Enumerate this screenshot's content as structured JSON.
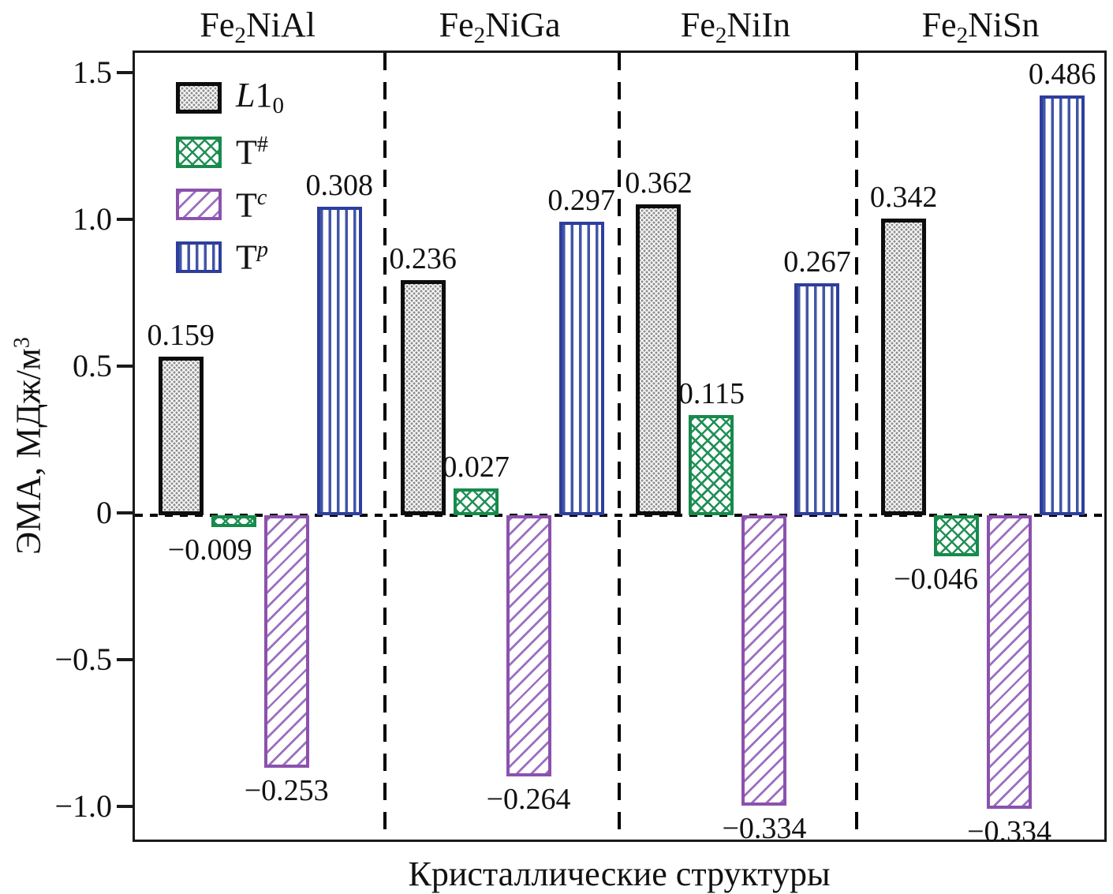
{
  "figure": {
    "xlabel": "Кристаллические структуры",
    "ylabel_main": "ЭМА, МДж/м",
    "ylabel_sup": "3"
  },
  "chart_data": {
    "type": "bar",
    "title": "",
    "xlabel": "Кристаллические структуры",
    "ylabel": "ЭМА, МДж/м³",
    "ylim": [
      -1.121,
      1.575
    ],
    "grid": false,
    "zero_line_style": "dotted",
    "legend_position": "upper-left",
    "group_separators_frac": [
      0.257,
      0.497,
      0.741
    ],
    "yticks": [
      {
        "value": 1.5,
        "label": "1.5"
      },
      {
        "value": 1.0,
        "label": "1.0"
      },
      {
        "value": 0.5,
        "label": "0.5"
      },
      {
        "value": 0.0,
        "label": "0"
      },
      {
        "value": -0.5,
        "label": "−0.5"
      },
      {
        "value": -1.0,
        "label": "−1.0"
      }
    ],
    "categories": [
      "Fe2NiAl",
      "Fe2NiGa",
      "Fe2NiIn",
      "Fe2NiSn"
    ],
    "groups": [
      {
        "title_base": "Fe",
        "title_sub": "2",
        "title_rest": "NiAl"
      },
      {
        "title_base": "Fe",
        "title_sub": "2",
        "title_rest": "NiGa"
      },
      {
        "title_base": "Fe",
        "title_sub": "2",
        "title_rest": "NiIn"
      },
      {
        "title_base": "Fe",
        "title_sub": "2",
        "title_rest": "NiSn"
      }
    ],
    "series": [
      {
        "name": "L1_0",
        "legend": {
          "italic": "L",
          "text": "1",
          "sub": "0"
        },
        "pattern": "dots",
        "border_color": "#0d0d0d",
        "pattern_color": "#909090",
        "border_px": 5,
        "bar_heights_axis_units": [
          0.54,
          0.8,
          1.06,
          1.01
        ],
        "value_labels": [
          "0.159",
          "0.236",
          "0.362",
          "0.342"
        ],
        "label_dx": [
          0,
          0,
          0,
          0
        ]
      },
      {
        "name": "T^#",
        "legend": {
          "text": "T",
          "sup": "#",
          "sup_italic": false
        },
        "pattern": "crosshatch",
        "border_color": "#178a4c",
        "pattern_color": "#1f9055",
        "border_px": 4,
        "bar_heights_axis_units": [
          -0.04,
          0.09,
          0.34,
          -0.14
        ],
        "value_labels": [
          "−0.009",
          "0.027",
          "0.115",
          "−0.046"
        ],
        "label_dx": [
          -30,
          0,
          0,
          -26
        ]
      },
      {
        "name": "T^c",
        "legend": {
          "text": "T",
          "sup": "c",
          "sup_italic": true
        },
        "pattern": "diagonal",
        "border_color": "#8b52ad",
        "pattern_color": "#9d6fc1",
        "border_px": 4,
        "bar_heights_axis_units": [
          -0.86,
          -0.89,
          -0.99,
          -1.0
        ],
        "value_labels": [
          "−0.253",
          "−0.264",
          "−0.334",
          "−0.334"
        ],
        "label_dx": [
          0,
          0,
          0,
          0
        ]
      },
      {
        "name": "T^p",
        "legend": {
          "text": "T",
          "sup": "p",
          "sup_italic": true
        },
        "pattern": "vertical",
        "border_color": "#2e3e9c",
        "pattern_color": "#4255a8",
        "border_px": 4,
        "bar_heights_axis_units": [
          1.05,
          1.0,
          0.79,
          1.43
        ],
        "value_labels": [
          "0.308",
          "0.297",
          "0.267",
          "0.486"
        ],
        "label_dx": [
          0,
          0,
          0,
          0
        ]
      }
    ]
  }
}
